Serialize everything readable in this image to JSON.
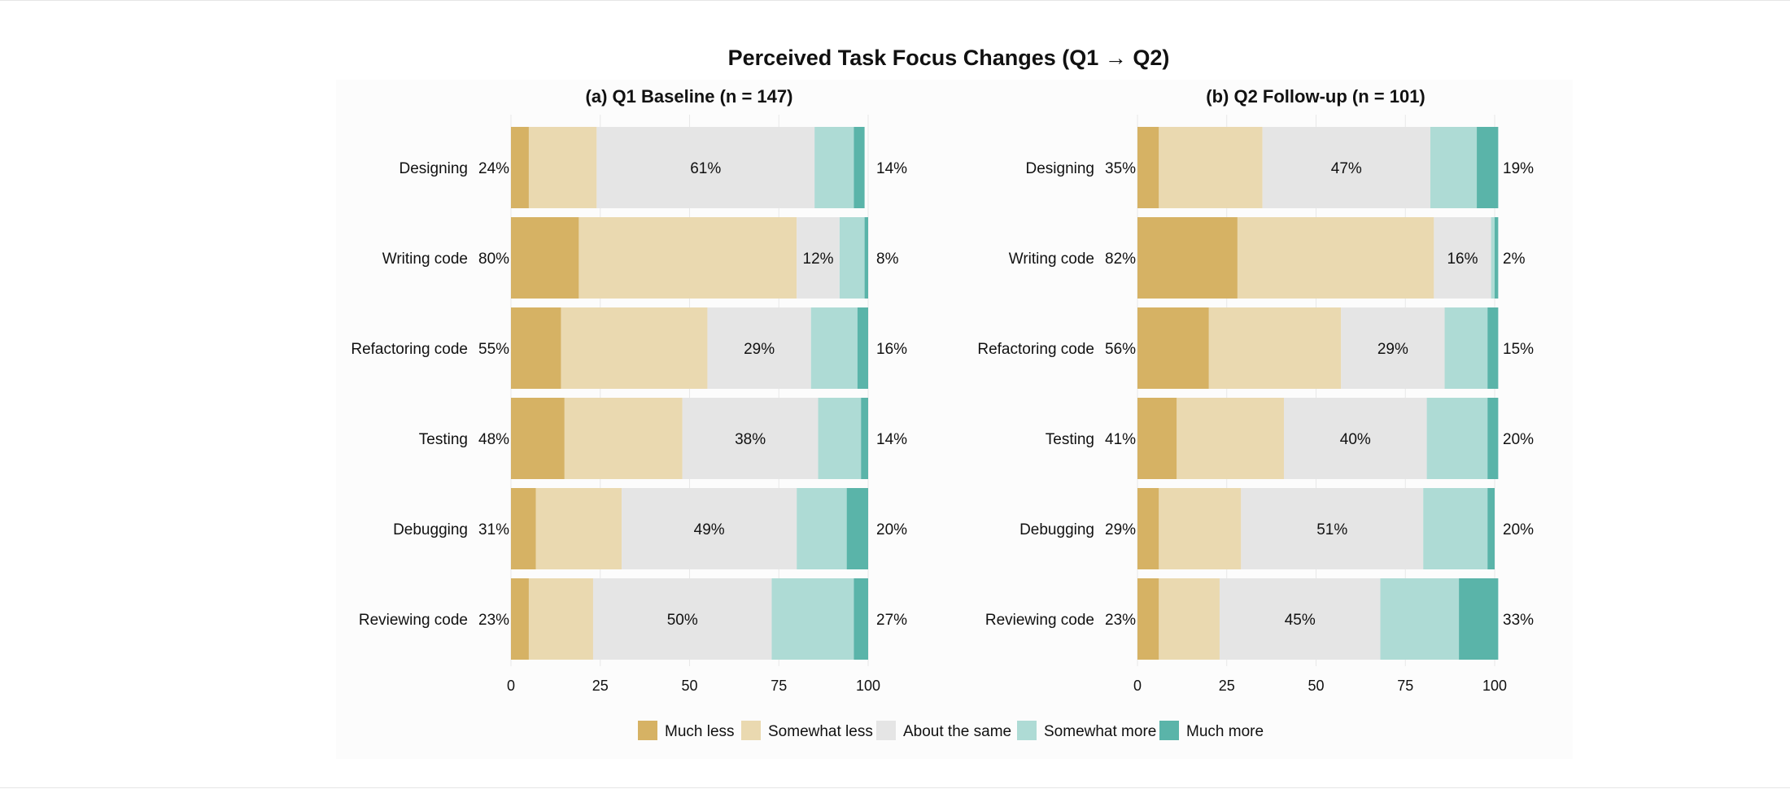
{
  "chart_data": {
    "title": "Perceived Task Focus Changes (Q1 → Q2)",
    "type": "bar",
    "orientation": "horizontal",
    "stacked": true,
    "categories": [
      "Designing",
      "Writing code",
      "Refactoring code",
      "Testing",
      "Debugging",
      "Reviewing code"
    ],
    "legend": {
      "placement": "bottom",
      "entries": [
        {
          "name": "Much less",
          "color": "#d6b264"
        },
        {
          "name": "Somewhat less",
          "color": "#ead9b0"
        },
        {
          "name": "About the same",
          "color": "#e5e5e5"
        },
        {
          "name": "Somewhat more",
          "color": "#aedbd5"
        },
        {
          "name": "Much more",
          "color": "#5ab4a9"
        }
      ]
    },
    "xlim": [
      0,
      100
    ],
    "xticks": [
      0,
      25,
      50,
      75,
      100
    ],
    "grid": true,
    "panels": [
      {
        "subtitle": "(a) Q1 Baseline (n = 147)",
        "series": [
          {
            "name": "Much less",
            "values": [
              5,
              19,
              14,
              15,
              7,
              5
            ]
          },
          {
            "name": "Somewhat less",
            "values": [
              19,
              61,
              41,
              33,
              24,
              18
            ]
          },
          {
            "name": "About the same",
            "values": [
              61,
              12,
              29,
              38,
              49,
              50
            ]
          },
          {
            "name": "Somewhat more",
            "values": [
              11,
              7,
              13,
              12,
              14,
              23
            ]
          },
          {
            "name": "Much more",
            "values": [
              3,
              1,
              3,
              2,
              6,
              4
            ]
          }
        ],
        "left_labels": [
          "24%",
          "80%",
          "55%",
          "48%",
          "31%",
          "23%"
        ],
        "center_labels": [
          "61%",
          "12%",
          "29%",
          "38%",
          "49%",
          "50%"
        ],
        "right_labels": [
          "14%",
          "8%",
          "16%",
          "14%",
          "20%",
          "27%"
        ]
      },
      {
        "subtitle": "(b) Q2 Follow-up (n = 101)",
        "series": [
          {
            "name": "Much less",
            "values": [
              6,
              28,
              20,
              11,
              6,
              6
            ]
          },
          {
            "name": "Somewhat less",
            "values": [
              29,
              55,
              37,
              30,
              23,
              17
            ]
          },
          {
            "name": "About the same",
            "values": [
              47,
              16,
              29,
              40,
              51,
              45
            ]
          },
          {
            "name": "Somewhat more",
            "values": [
              13,
              1,
              12,
              17,
              18,
              22
            ]
          },
          {
            "name": "Much more",
            "values": [
              6,
              1,
              3,
              3,
              2,
              11
            ]
          }
        ],
        "left_labels": [
          "35%",
          "82%",
          "56%",
          "41%",
          "29%",
          "23%"
        ],
        "center_labels": [
          "47%",
          "16%",
          "29%",
          "40%",
          "51%",
          "45%"
        ],
        "right_labels": [
          "19%",
          "2%",
          "15%",
          "20%",
          "20%",
          "33%"
        ]
      }
    ]
  }
}
